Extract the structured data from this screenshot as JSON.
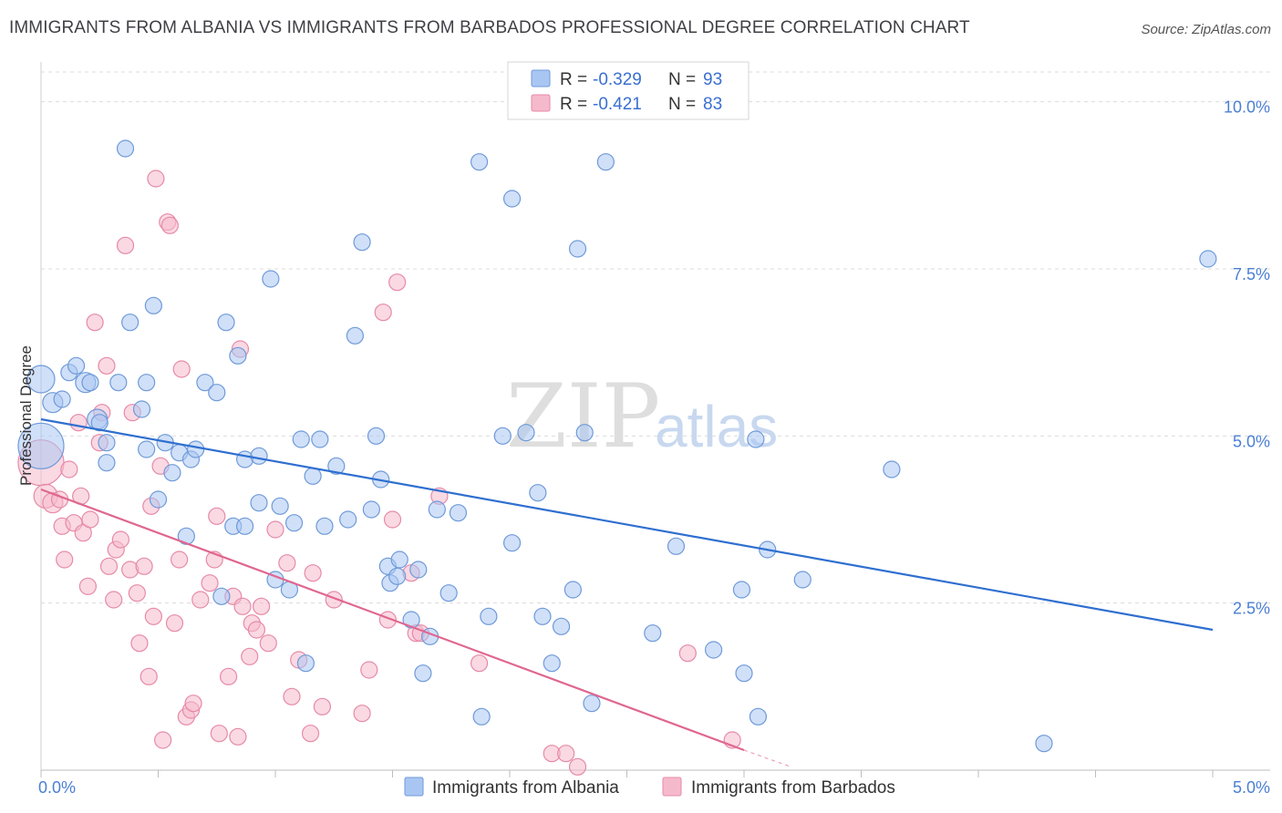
{
  "title": "IMMIGRANTS FROM ALBANIA VS IMMIGRANTS FROM BARBADOS PROFESSIONAL DEGREE CORRELATION CHART",
  "source": "Source: ZipAtlas.com",
  "watermark": {
    "zip": "ZIP",
    "atlas": "atlas"
  },
  "legend": {
    "r_label": "R =",
    "n_label": "N =",
    "albania": {
      "r": "-0.329",
      "n": "93"
    },
    "barbados": {
      "r": "-0.421",
      "n": "83"
    }
  },
  "bottom_legend": {
    "albania": "Immigrants from Albania",
    "barbados": "Immigrants from Barbados"
  },
  "colors": {
    "albania_fill": "#a9c6f3",
    "albania_stroke": "#6f9ad9",
    "albania_line": "#2f6fd0",
    "barbados_fill": "#f5b9cc",
    "barbados_stroke": "#e68aa8",
    "barbados_line": "#e0668f",
    "tick": "#4a7fd4"
  },
  "chart_data": {
    "type": "scatter",
    "title": "IMMIGRANTS FROM ALBANIA VS IMMIGRANTS FROM BARBADOS PROFESSIONAL DEGREE CORRELATION CHART",
    "xlabel": "",
    "ylabel": "Professional Degree",
    "xlim": [
      0,
      5.0
    ],
    "ylim": [
      0,
      10.5
    ],
    "x_tick_labels": [
      "0.0%",
      "5.0%"
    ],
    "y_tick_labels": [
      "2.5%",
      "5.0%",
      "7.5%",
      "10.0%"
    ],
    "y_ticks": [
      2.5,
      5.0,
      7.5,
      10.0
    ],
    "grid": true,
    "series": [
      {
        "name": "Immigrants from Albania",
        "r": -0.329,
        "n": 93,
        "trend": [
          [
            0.0,
            5.25
          ],
          [
            5.0,
            2.1
          ]
        ],
        "points": [
          [
            0.0,
            4.85,
            26
          ],
          [
            0.0,
            5.85,
            16
          ],
          [
            0.05,
            5.5,
            12
          ],
          [
            0.09,
            5.55,
            10
          ],
          [
            0.12,
            5.95,
            10
          ],
          [
            0.15,
            6.05,
            10
          ],
          [
            0.19,
            5.8,
            12
          ],
          [
            0.21,
            5.8,
            10
          ],
          [
            0.24,
            5.25,
            12
          ],
          [
            0.25,
            5.2,
            10
          ],
          [
            0.28,
            4.9,
            10
          ],
          [
            0.28,
            4.6,
            10
          ],
          [
            0.33,
            5.8,
            10
          ],
          [
            0.36,
            9.3,
            10
          ],
          [
            0.38,
            6.7,
            10
          ],
          [
            0.43,
            5.4,
            10
          ],
          [
            0.45,
            4.8,
            10
          ],
          [
            0.45,
            5.8,
            10
          ],
          [
            0.48,
            6.95,
            10
          ],
          [
            0.5,
            4.05,
            10
          ],
          [
            0.53,
            4.9,
            10
          ],
          [
            0.56,
            4.45,
            10
          ],
          [
            0.59,
            4.75,
            10
          ],
          [
            0.62,
            3.5,
            10
          ],
          [
            0.64,
            4.65,
            10
          ],
          [
            0.66,
            4.8,
            10
          ],
          [
            0.7,
            5.8,
            10
          ],
          [
            0.75,
            5.65,
            10
          ],
          [
            0.77,
            2.6,
            10
          ],
          [
            0.79,
            6.7,
            10
          ],
          [
            0.82,
            3.65,
            10
          ],
          [
            0.84,
            6.2,
            10
          ],
          [
            0.87,
            3.65,
            10
          ],
          [
            0.87,
            4.65,
            10
          ],
          [
            0.93,
            4.7,
            10
          ],
          [
            0.93,
            4.0,
            10
          ],
          [
            0.98,
            7.35,
            10
          ],
          [
            1.0,
            2.85,
            10
          ],
          [
            1.02,
            3.95,
            10
          ],
          [
            1.06,
            2.7,
            10
          ],
          [
            1.08,
            3.7,
            10
          ],
          [
            1.11,
            4.95,
            10
          ],
          [
            1.13,
            1.6,
            10
          ],
          [
            1.16,
            4.4,
            10
          ],
          [
            1.19,
            4.95,
            10
          ],
          [
            1.21,
            3.65,
            10
          ],
          [
            1.26,
            4.55,
            10
          ],
          [
            1.31,
            3.75,
            10
          ],
          [
            1.34,
            6.5,
            10
          ],
          [
            1.37,
            7.9,
            10
          ],
          [
            1.41,
            3.9,
            10
          ],
          [
            1.43,
            5.0,
            10
          ],
          [
            1.45,
            4.35,
            10
          ],
          [
            1.48,
            3.05,
            10
          ],
          [
            1.49,
            2.8,
            10
          ],
          [
            1.52,
            2.9,
            10
          ],
          [
            1.53,
            3.15,
            10
          ],
          [
            1.61,
            3.0,
            10
          ],
          [
            1.58,
            2.25,
            10
          ],
          [
            1.63,
            1.45,
            10
          ],
          [
            1.66,
            2.0,
            10
          ],
          [
            1.69,
            3.9,
            10
          ],
          [
            1.74,
            2.65,
            10
          ],
          [
            1.78,
            3.85,
            10
          ],
          [
            1.87,
            9.1,
            10
          ],
          [
            1.88,
            0.8,
            10
          ],
          [
            1.91,
            2.3,
            10
          ],
          [
            1.97,
            5.0,
            10
          ],
          [
            2.01,
            3.4,
            10
          ],
          [
            2.01,
            8.55,
            10
          ],
          [
            2.07,
            5.05,
            10
          ],
          [
            2.12,
            4.15,
            10
          ],
          [
            2.14,
            2.3,
            10
          ],
          [
            2.18,
            1.6,
            10
          ],
          [
            2.22,
            2.15,
            10
          ],
          [
            2.27,
            2.7,
            10
          ],
          [
            2.29,
            7.8,
            10
          ],
          [
            2.32,
            5.05,
            10
          ],
          [
            2.35,
            1.0,
            10
          ],
          [
            2.41,
            9.1,
            10
          ],
          [
            2.61,
            2.05,
            10
          ],
          [
            2.71,
            3.35,
            10
          ],
          [
            2.87,
            1.8,
            10
          ],
          [
            2.99,
            2.7,
            10
          ],
          [
            3.0,
            1.45,
            10
          ],
          [
            3.05,
            4.95,
            10
          ],
          [
            3.06,
            0.8,
            10
          ],
          [
            3.1,
            3.3,
            10
          ],
          [
            3.25,
            2.85,
            10
          ],
          [
            3.63,
            4.5,
            10
          ],
          [
            4.28,
            0.4,
            10
          ],
          [
            4.98,
            7.65,
            10
          ]
        ]
      },
      {
        "name": "Immigrants from Barbados",
        "r": -0.421,
        "n": 83,
        "trend": [
          [
            0.0,
            4.2
          ],
          [
            3.0,
            0.3
          ]
        ],
        "trend_dashed": [
          [
            3.0,
            0.3
          ],
          [
            3.2,
            0.05
          ]
        ],
        "points": [
          [
            0.0,
            4.6,
            26
          ],
          [
            0.02,
            4.1,
            14
          ],
          [
            0.05,
            4.0,
            12
          ],
          [
            0.08,
            4.05,
            10
          ],
          [
            0.09,
            3.65,
            10
          ],
          [
            0.1,
            3.15,
            10
          ],
          [
            0.12,
            4.5,
            10
          ],
          [
            0.14,
            3.7,
            10
          ],
          [
            0.16,
            5.2,
            10
          ],
          [
            0.17,
            4.1,
            10
          ],
          [
            0.18,
            3.55,
            10
          ],
          [
            0.2,
            2.75,
            10
          ],
          [
            0.21,
            3.75,
            10
          ],
          [
            0.23,
            6.7,
            10
          ],
          [
            0.25,
            4.9,
            10
          ],
          [
            0.26,
            5.35,
            10
          ],
          [
            0.28,
            6.05,
            10
          ],
          [
            0.29,
            3.05,
            10
          ],
          [
            0.31,
            2.55,
            10
          ],
          [
            0.32,
            3.3,
            10
          ],
          [
            0.34,
            3.45,
            10
          ],
          [
            0.36,
            7.85,
            10
          ],
          [
            0.38,
            3.0,
            10
          ],
          [
            0.39,
            5.35,
            10
          ],
          [
            0.41,
            2.65,
            10
          ],
          [
            0.42,
            1.9,
            10
          ],
          [
            0.44,
            3.05,
            10
          ],
          [
            0.46,
            1.4,
            10
          ],
          [
            0.47,
            3.95,
            10
          ],
          [
            0.48,
            2.3,
            10
          ],
          [
            0.49,
            8.85,
            10
          ],
          [
            0.51,
            4.55,
            10
          ],
          [
            0.52,
            0.45,
            10
          ],
          [
            0.54,
            8.2,
            10
          ],
          [
            0.55,
            8.15,
            10
          ],
          [
            0.57,
            2.2,
            10
          ],
          [
            0.59,
            3.15,
            10
          ],
          [
            0.6,
            6.0,
            10
          ],
          [
            0.62,
            0.8,
            10
          ],
          [
            0.64,
            0.9,
            10
          ],
          [
            0.65,
            1.0,
            10
          ],
          [
            0.68,
            2.55,
            10
          ],
          [
            0.72,
            2.8,
            10
          ],
          [
            0.74,
            3.15,
            10
          ],
          [
            0.75,
            3.8,
            10
          ],
          [
            0.76,
            0.55,
            10
          ],
          [
            0.8,
            1.4,
            10
          ],
          [
            0.82,
            2.6,
            10
          ],
          [
            0.84,
            0.5,
            10
          ],
          [
            0.85,
            6.3,
            10
          ],
          [
            0.86,
            2.45,
            10
          ],
          [
            0.89,
            1.7,
            10
          ],
          [
            0.9,
            2.2,
            10
          ],
          [
            0.92,
            2.1,
            10
          ],
          [
            0.94,
            2.45,
            10
          ],
          [
            0.97,
            1.9,
            10
          ],
          [
            1.0,
            3.6,
            10
          ],
          [
            1.05,
            3.1,
            10
          ],
          [
            1.07,
            1.1,
            10
          ],
          [
            1.1,
            1.65,
            10
          ],
          [
            1.15,
            0.55,
            10
          ],
          [
            1.16,
            2.95,
            10
          ],
          [
            1.2,
            0.95,
            10
          ],
          [
            1.25,
            2.55,
            10
          ],
          [
            1.37,
            0.85,
            10
          ],
          [
            1.4,
            1.5,
            10
          ],
          [
            1.46,
            6.85,
            10
          ],
          [
            1.48,
            2.25,
            10
          ],
          [
            1.5,
            3.75,
            10
          ],
          [
            1.52,
            7.3,
            10
          ],
          [
            1.6,
            2.05,
            10
          ],
          [
            1.62,
            2.05,
            10
          ],
          [
            1.7,
            4.1,
            10
          ],
          [
            1.87,
            1.6,
            10
          ],
          [
            2.18,
            0.25,
            10
          ],
          [
            2.24,
            0.25,
            10
          ],
          [
            2.29,
            0.05,
            10
          ],
          [
            2.76,
            1.75,
            10
          ],
          [
            2.95,
            0.45,
            10
          ],
          [
            1.58,
            2.95,
            10
          ]
        ]
      }
    ]
  }
}
